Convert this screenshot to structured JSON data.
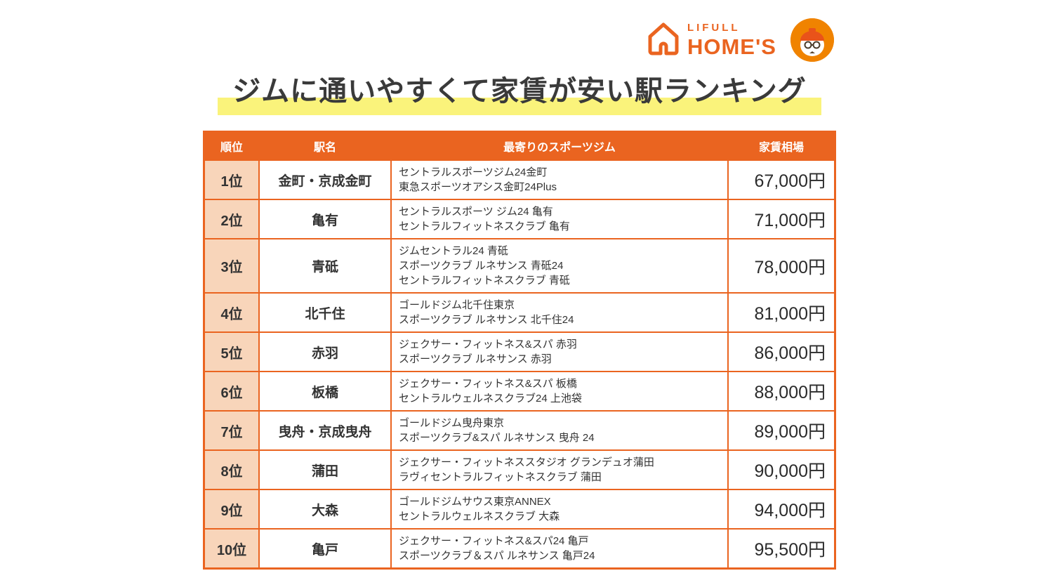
{
  "logo": {
    "lifull": "LIFULL",
    "homes": "HOME'S"
  },
  "title": "ジムに通いやすくて家賃が安い駅ランキング",
  "table": {
    "headers": [
      "順位",
      "駅名",
      "最寄りのスポーツジム",
      "家賃相場"
    ],
    "rows": [
      {
        "rank": "1位",
        "station": "金町・京成金町",
        "gyms": [
          "セントラルスポーツジム24金町",
          "東急スポーツオアシス金町24Plus"
        ],
        "rent": "67,000円"
      },
      {
        "rank": "2位",
        "station": "亀有",
        "gyms": [
          "セントラルスポーツ ジム24 亀有",
          "セントラルフィットネスクラブ 亀有"
        ],
        "rent": "71,000円"
      },
      {
        "rank": "3位",
        "station": "青砥",
        "gyms": [
          "ジムセントラル24 青砥",
          "スポーツクラブ ルネサンス 青砥24",
          "セントラルフィットネスクラブ 青砥"
        ],
        "rent": "78,000円"
      },
      {
        "rank": "4位",
        "station": "北千住",
        "gyms": [
          "ゴールドジム北千住東京",
          "スポーツクラブ ルネサンス 北千住24"
        ],
        "rent": "81,000円"
      },
      {
        "rank": "5位",
        "station": "赤羽",
        "gyms": [
          "ジェクサー・フィットネス&スパ 赤羽",
          "スポーツクラブ ルネサンス 赤羽"
        ],
        "rent": "86,000円"
      },
      {
        "rank": "6位",
        "station": "板橋",
        "gyms": [
          "ジェクサー・フィットネス&スパ 板橋",
          "セントラルウェルネスクラブ24 上池袋"
        ],
        "rent": "88,000円"
      },
      {
        "rank": "7位",
        "station": "曳舟・京成曳舟",
        "gyms": [
          "ゴールドジム曳舟東京",
          "スポーツクラブ&スパ ルネサンス 曳舟 24"
        ],
        "rent": "89,000円"
      },
      {
        "rank": "8位",
        "station": "蒲田",
        "gyms": [
          "ジェクサー・フィットネススタジオ グランデュオ蒲田",
          "ラヴィセントラルフィットネスクラブ 蒲田"
        ],
        "rent": "90,000円"
      },
      {
        "rank": "9位",
        "station": "大森",
        "gyms": [
          "ゴールドジムサウス東京ANNEX",
          "セントラルウェルネスクラブ 大森"
        ],
        "rent": "94,000円"
      },
      {
        "rank": "10位",
        "station": "亀戸",
        "gyms": [
          "ジェクサー・フィットネス&スパ24 亀戸",
          "スポーツクラブ＆スパ ルネサンス 亀戸24"
        ],
        "rent": "95,500円"
      }
    ]
  },
  "chart_data": {
    "type": "table",
    "title": "ジムに通いやすくて家賃が安い駅ランキング",
    "columns": [
      "順位",
      "駅名",
      "最寄りのスポーツジム",
      "家賃相場"
    ],
    "rows": [
      [
        "1位",
        "金町・京成金町",
        "セントラルスポーツジム24金町 / 東急スポーツオアシス金町24Plus",
        "67,000円"
      ],
      [
        "2位",
        "亀有",
        "セントラルスポーツ ジム24 亀有 / セントラルフィットネスクラブ 亀有",
        "71,000円"
      ],
      [
        "3位",
        "青砥",
        "ジムセントラル24 青砥 / スポーツクラブ ルネサンス 青砥24 / セントラルフィットネスクラブ 青砥",
        "78,000円"
      ],
      [
        "4位",
        "北千住",
        "ゴールドジム北千住東京 / スポーツクラブ ルネサンス 北千住24",
        "81,000円"
      ],
      [
        "5位",
        "赤羽",
        "ジェクサー・フィットネス&スパ 赤羽 / スポーツクラブ ルネサンス 赤羽",
        "86,000円"
      ],
      [
        "6位",
        "板橋",
        "ジェクサー・フィットネス&スパ 板橋 / セントラルウェルネスクラブ24 上池袋",
        "88,000円"
      ],
      [
        "7位",
        "曳舟・京成曳舟",
        "ゴールドジム曳舟東京 / スポーツクラブ&スパ ルネサンス 曳舟 24",
        "89,000円"
      ],
      [
        "8位",
        "蒲田",
        "ジェクサー・フィットネススタジオ グランデュオ蒲田 / ラヴィセントラルフィットネスクラブ 蒲田",
        "90,000円"
      ],
      [
        "9位",
        "大森",
        "ゴールドジムサウス東京ANNEX / セントラルウェルネスクラブ 大森",
        "94,000円"
      ],
      [
        "10位",
        "亀戸",
        "ジェクサー・フィットネス&スパ24 亀戸 / スポーツクラブ＆スパ ルネサンス 亀戸24",
        "95,500円"
      ]
    ],
    "rent_values_yen": [
      67000,
      71000,
      78000,
      81000,
      86000,
      88000,
      89000,
      90000,
      94000,
      95500
    ],
    "colors": {
      "accent_orange": "#EA6420",
      "rank_column_bg": "#F8D5BA",
      "title_highlight": "#FAF37B",
      "mascot_orange": "#F08300"
    }
  }
}
